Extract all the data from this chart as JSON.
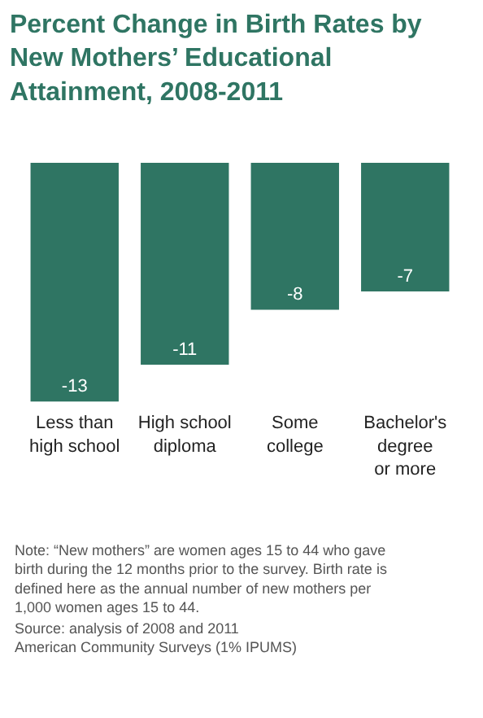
{
  "chart_data": {
    "type": "bar",
    "title": "Percent Change in Birth Rates by\nNew Mothers’ Educational\nAttainment, 2008-2011",
    "categories": [
      "Less than\nhigh school",
      "High school\ndiploma",
      "Some\ncollege",
      "Bachelor's\ndegree\nor more"
    ],
    "values": [
      -13,
      -11,
      -8,
      -7
    ],
    "color": "#2f7563",
    "data_labels": true,
    "legend": false,
    "annotations": [
      "Note: “New mothers” are women ages 15 to 44 who gave\nbirth during the 12 months prior to the survey. Birth rate is\ndefined here as the annual number of new mothers per\n1,000 women ages 15 to 44.",
      "Source: analysis of 2008 and 2011\nAmerican Community Surveys (1% IPUMS)"
    ]
  }
}
